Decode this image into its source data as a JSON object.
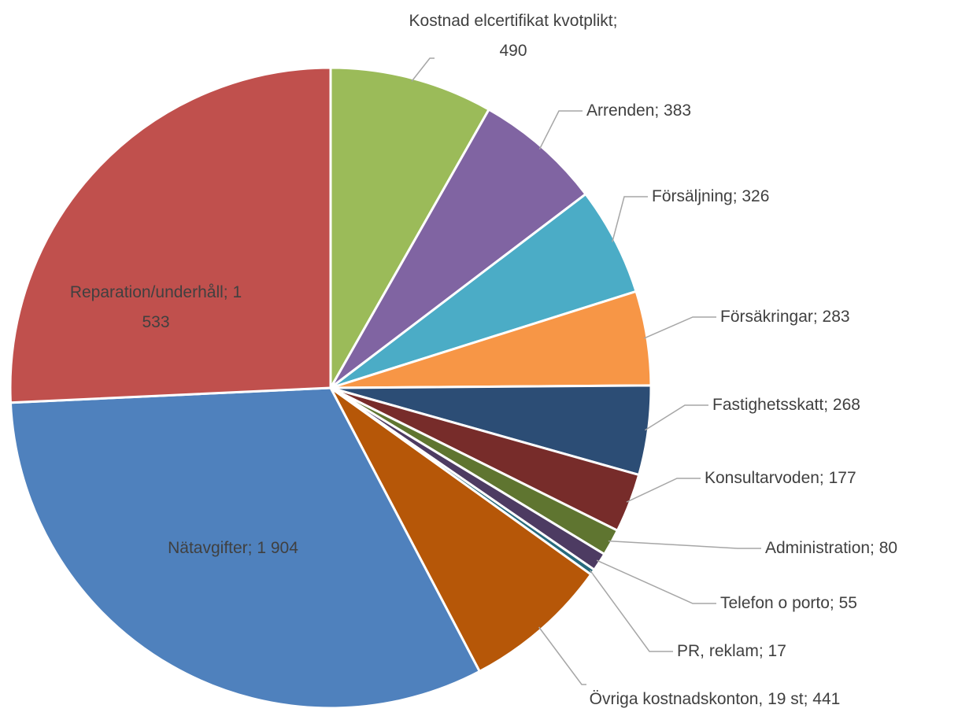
{
  "chart_data": {
    "type": "pie",
    "labels": [
      "Kostnad elcertifikat kvotplikt; 490",
      "Arrenden; 383",
      "Försäljning; 326",
      "Försäkringar; 283",
      "Fastighetsskatt; 268",
      "Konsultarvoden; 177",
      "Administration; 80",
      "Telefon o porto; 55",
      "PR, reklam; 17",
      "Övriga kostnadskonton, 19 st; 441",
      "Nätavgifter; 1 904",
      "Reparation/underhåll; 1 533"
    ],
    "values": [
      490,
      383,
      326,
      283,
      268,
      177,
      80,
      55,
      17,
      441,
      1904,
      1533
    ],
    "colors": [
      "#9bbb59",
      "#8064a2",
      "#4bacc6",
      "#f79646",
      "#2c4d75",
      "#772c2a",
      "#5f7530",
      "#4d3b62",
      "#276a7c",
      "#b65708",
      "#4f81bd",
      "#c0504d"
    ]
  }
}
